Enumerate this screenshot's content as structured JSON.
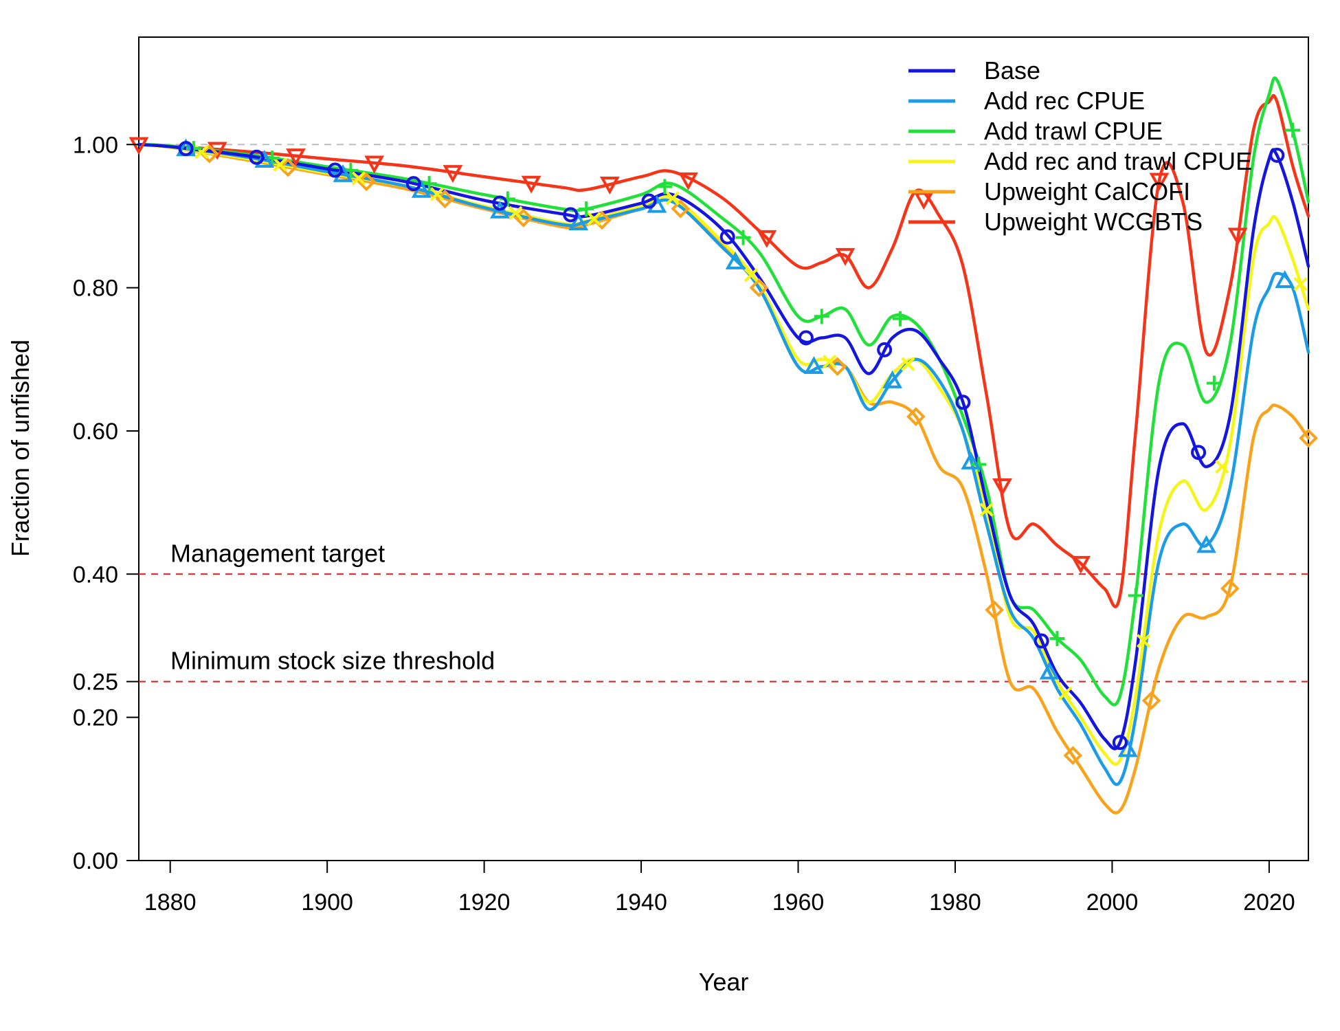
{
  "chart_data": {
    "type": "line",
    "title": "",
    "xlabel": "Year",
    "ylabel": "Fraction of unfished",
    "xlim": [
      1876,
      2025
    ],
    "ylim": [
      0,
      1.15
    ],
    "x_ticks": [
      1880,
      1900,
      1920,
      1940,
      1960,
      1980,
      2000,
      2020
    ],
    "y_ticks": [
      0.0,
      0.2,
      0.25,
      0.4,
      0.6,
      0.8,
      1.0
    ],
    "y_tick_labels": [
      "0.00",
      "0.20",
      "0.25",
      "0.40",
      "0.60",
      "0.80",
      "1.00"
    ],
    "grid": false,
    "legend_position": "top-right",
    "reference_lines": [
      {
        "y": 1.0,
        "color": "#bdbdbd",
        "style": "dashed",
        "label": ""
      },
      {
        "y": 0.4,
        "color": "#e31a1c",
        "style": "dashed",
        "label": "Management target"
      },
      {
        "y": 0.25,
        "color": "#e31a1c",
        "style": "dashed",
        "label": "Minimum stock size threshold"
      }
    ],
    "x": [
      1876,
      1880,
      1890,
      1900,
      1910,
      1920,
      1930,
      1933,
      1940,
      1944,
      1950,
      1955,
      1960,
      1963,
      1966,
      1969,
      1972,
      1975,
      1978,
      1981,
      1984,
      1987,
      1990,
      1993,
      1996,
      1999,
      2001,
      2003,
      2006,
      2009,
      2012,
      2015,
      2018,
      2020,
      2021,
      2023,
      2025
    ],
    "series": [
      {
        "name": "Base",
        "color": "#1515e0",
        "marker": "circle",
        "marker_x": [
          1882,
          1891,
          1901,
          1911,
          1922,
          1931,
          1941,
          1951,
          1961,
          1971,
          1981,
          1991,
          2001,
          2011,
          2021
        ],
        "values": [
          1.0,
          0.997,
          0.984,
          0.966,
          0.948,
          0.922,
          0.903,
          0.9,
          0.918,
          0.93,
          0.885,
          0.815,
          0.73,
          0.73,
          0.73,
          0.68,
          0.73,
          0.74,
          0.7,
          0.64,
          0.5,
          0.37,
          0.33,
          0.26,
          0.22,
          0.17,
          0.165,
          0.28,
          0.55,
          0.61,
          0.55,
          0.62,
          0.88,
          0.98,
          0.985,
          0.92,
          0.83
        ]
      },
      {
        "name": "Add rec CPUE",
        "color": "#1c9ce6",
        "marker": "triangle",
        "marker_x": [
          1882,
          1892,
          1902,
          1912,
          1922,
          1932,
          1942,
          1952,
          1962,
          1972,
          1982,
          1992,
          2002,
          2012,
          2022
        ],
        "values": [
          1.0,
          0.997,
          0.982,
          0.962,
          0.942,
          0.912,
          0.888,
          0.892,
          0.91,
          0.92,
          0.86,
          0.8,
          0.69,
          0.69,
          0.69,
          0.63,
          0.67,
          0.7,
          0.67,
          0.6,
          0.47,
          0.35,
          0.31,
          0.24,
          0.19,
          0.13,
          0.11,
          0.2,
          0.42,
          0.47,
          0.44,
          0.52,
          0.74,
          0.8,
          0.82,
          0.8,
          0.71
        ]
      },
      {
        "name": "Add trawl CPUE",
        "color": "#22e03a",
        "marker": "plus",
        "marker_x": [
          1883,
          1893,
          1903,
          1913,
          1923,
          1933,
          1943,
          1953,
          1963,
          1973,
          1983,
          1993,
          2003,
          2013,
          2023
        ],
        "values": [
          1.0,
          0.998,
          0.986,
          0.969,
          0.952,
          0.93,
          0.91,
          0.91,
          0.93,
          0.945,
          0.9,
          0.85,
          0.76,
          0.76,
          0.77,
          0.72,
          0.76,
          0.75,
          0.7,
          0.62,
          0.52,
          0.37,
          0.35,
          0.31,
          0.28,
          0.23,
          0.23,
          0.37,
          0.67,
          0.72,
          0.64,
          0.72,
          0.98,
          1.07,
          1.09,
          1.02,
          0.92
        ]
      },
      {
        "name": "Add rec and trawl CPUE",
        "color": "#f5f51a",
        "marker": "cross",
        "marker_x": [
          1884,
          1894,
          1904,
          1914,
          1924,
          1934,
          1944,
          1954,
          1964,
          1974,
          1984,
          1994,
          2004,
          2014,
          2024
        ],
        "values": [
          1.0,
          0.996,
          0.98,
          0.96,
          0.942,
          0.914,
          0.89,
          0.893,
          0.915,
          0.925,
          0.868,
          0.805,
          0.7,
          0.7,
          0.69,
          0.64,
          0.68,
          0.7,
          0.66,
          0.6,
          0.49,
          0.34,
          0.32,
          0.25,
          0.2,
          0.15,
          0.14,
          0.23,
          0.46,
          0.53,
          0.49,
          0.58,
          0.84,
          0.89,
          0.895,
          0.84,
          0.77
        ]
      },
      {
        "name": "Upweight CalCOFI",
        "color": "#f9a21c",
        "marker": "diamond",
        "marker_x": [
          1885,
          1895,
          1905,
          1915,
          1925,
          1935,
          1945,
          1955,
          1965,
          1975,
          1985,
          1995,
          2005,
          2015,
          2025
        ],
        "values": [
          1.0,
          0.996,
          0.978,
          0.958,
          0.938,
          0.91,
          0.885,
          0.888,
          0.91,
          0.92,
          0.862,
          0.8,
          0.69,
          0.69,
          0.69,
          0.64,
          0.64,
          0.62,
          0.55,
          0.52,
          0.4,
          0.25,
          0.24,
          0.18,
          0.13,
          0.08,
          0.07,
          0.13,
          0.27,
          0.34,
          0.34,
          0.38,
          0.59,
          0.63,
          0.635,
          0.62,
          0.59
        ]
      },
      {
        "name": "Upweight WCGBTS",
        "color": "#f5351a",
        "marker": "triangle-down",
        "marker_x": [
          1876,
          1886,
          1896,
          1906,
          1916,
          1926,
          1936,
          1946,
          1956,
          1966,
          1976,
          1986,
          1996,
          2006,
          2016
        ],
        "values": [
          1.0,
          0.998,
          0.99,
          0.98,
          0.97,
          0.955,
          0.94,
          0.937,
          0.955,
          0.962,
          0.928,
          0.88,
          0.83,
          0.835,
          0.845,
          0.8,
          0.855,
          0.935,
          0.9,
          0.83,
          0.65,
          0.46,
          0.47,
          0.44,
          0.415,
          0.38,
          0.37,
          0.6,
          0.95,
          0.92,
          0.71,
          0.8,
          1.02,
          1.06,
          1.06,
          0.97,
          0.9
        ]
      }
    ]
  }
}
